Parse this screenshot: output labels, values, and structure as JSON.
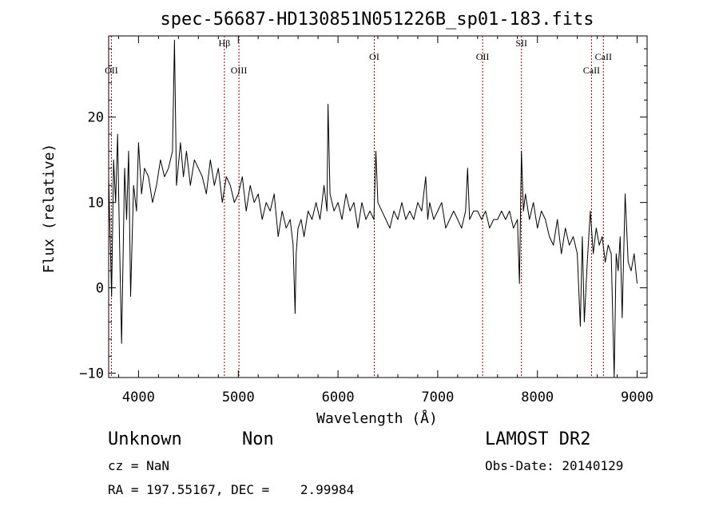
{
  "chart_data": {
    "type": "line",
    "title": "spec-56687-HD130851N051226B_sp01-183.fits",
    "xlabel": "Wavelength (Å)",
    "ylabel": "Flux (relative)",
    "xlim": [
      3700,
      9100
    ],
    "ylim": [
      -10.5,
      29.5
    ],
    "x_ticks": [
      4000,
      5000,
      6000,
      7000,
      8000,
      9000
    ],
    "y_ticks": [
      -10,
      0,
      10,
      20
    ],
    "grid": false,
    "line_color": "#000000",
    "marker_color": "#8b0000",
    "spectral_lines": [
      {
        "name": "OII",
        "wavelength": 3727
      },
      {
        "name": "Hβ",
        "wavelength": 4861
      },
      {
        "name": "OIII",
        "wavelength": 5007
      },
      {
        "name": "OI",
        "wavelength": 6364
      },
      {
        "name": "OII",
        "wavelength": 7450
      },
      {
        "name": "SII",
        "wavelength": 7840
      },
      {
        "name": "CaII",
        "wavelength": 8542
      },
      {
        "name": "CaII",
        "wavelength": 8662
      }
    ],
    "series": [
      {
        "x": [
          3700,
          3730,
          3750,
          3770,
          3790,
          3810,
          3830,
          3860,
          3880,
          3900,
          3920,
          3950,
          3980,
          4000,
          4030,
          4060,
          4100,
          4140,
          4180,
          4220,
          4260,
          4300,
          4340,
          4360,
          4380,
          4420,
          4450,
          4480,
          4520,
          4560,
          4600,
          4640,
          4680,
          4720,
          4760,
          4800,
          4840,
          4880,
          4920,
          4960,
          5000,
          5040,
          5080,
          5120,
          5160,
          5200,
          5240,
          5280,
          5320,
          5360,
          5400,
          5440,
          5480,
          5520,
          5550,
          5570,
          5580,
          5600,
          5630,
          5660,
          5700,
          5740,
          5780,
          5820,
          5860,
          5890,
          5900,
          5920,
          5960,
          6000,
          6040,
          6080,
          6120,
          6160,
          6200,
          6240,
          6280,
          6320,
          6360,
          6380,
          6400,
          6440,
          6480,
          6520,
          6560,
          6600,
          6640,
          6680,
          6720,
          6760,
          6800,
          6840,
          6880,
          6900,
          6920,
          6960,
          7000,
          7040,
          7080,
          7120,
          7160,
          7200,
          7240,
          7280,
          7300,
          7320,
          7360,
          7400,
          7440,
          7480,
          7520,
          7560,
          7600,
          7640,
          7680,
          7720,
          7760,
          7800,
          7820,
          7840,
          7860,
          7880,
          7920,
          7960,
          8000,
          8040,
          8080,
          8120,
          8160,
          8200,
          8240,
          8280,
          8320,
          8360,
          8400,
          8430,
          8450,
          8470,
          8500,
          8530,
          8560,
          8590,
          8620,
          8650,
          8680,
          8710,
          8740,
          8770,
          8790,
          8810,
          8830,
          8850,
          8880,
          8910,
          8940,
          8970,
          9000
        ],
        "y": [
          13,
          -1,
          15,
          10,
          18,
          5,
          -6.5,
          14,
          8,
          16,
          -1,
          12,
          9,
          17,
          11,
          14,
          13,
          10,
          12,
          15,
          13,
          14,
          16,
          29,
          12,
          17,
          13,
          16,
          12,
          15,
          14,
          13,
          11,
          15,
          12,
          14,
          10,
          13,
          12,
          10,
          11,
          13,
          9,
          12,
          10,
          11,
          8,
          10,
          9,
          11,
          6,
          9,
          7,
          8,
          5,
          -3,
          4,
          7,
          8,
          6,
          9,
          8,
          10,
          8,
          12,
          9,
          21.5,
          11,
          9,
          10,
          8,
          11,
          9,
          10,
          7,
          10,
          8,
          9,
          8,
          16,
          10,
          9,
          8,
          7,
          9,
          8,
          10,
          8,
          9,
          8,
          10,
          9,
          13,
          8,
          10,
          8,
          9,
          10,
          7,
          8,
          9,
          8,
          7,
          9,
          14,
          8,
          9,
          9,
          8,
          9,
          7,
          8,
          8,
          9,
          8,
          9,
          7,
          8,
          0.5,
          16,
          9,
          11,
          8,
          10,
          7,
          9,
          8,
          6,
          5,
          8,
          4,
          7,
          5,
          6,
          4,
          -4.5,
          6,
          -4,
          3,
          9,
          4,
          7,
          5,
          6,
          3,
          5,
          4,
          -10.5,
          4,
          2,
          6,
          -3.5,
          11,
          3,
          2,
          4,
          0.5
        ]
      }
    ]
  },
  "footer": {
    "object_class": "Unknown",
    "subclass": "Non",
    "redshift": "cz = NaN",
    "coords": "RA = 197.55167, DEC =    2.99984",
    "survey": "LAMOST DR2",
    "obs_date": "Obs-Date: 20140129"
  }
}
